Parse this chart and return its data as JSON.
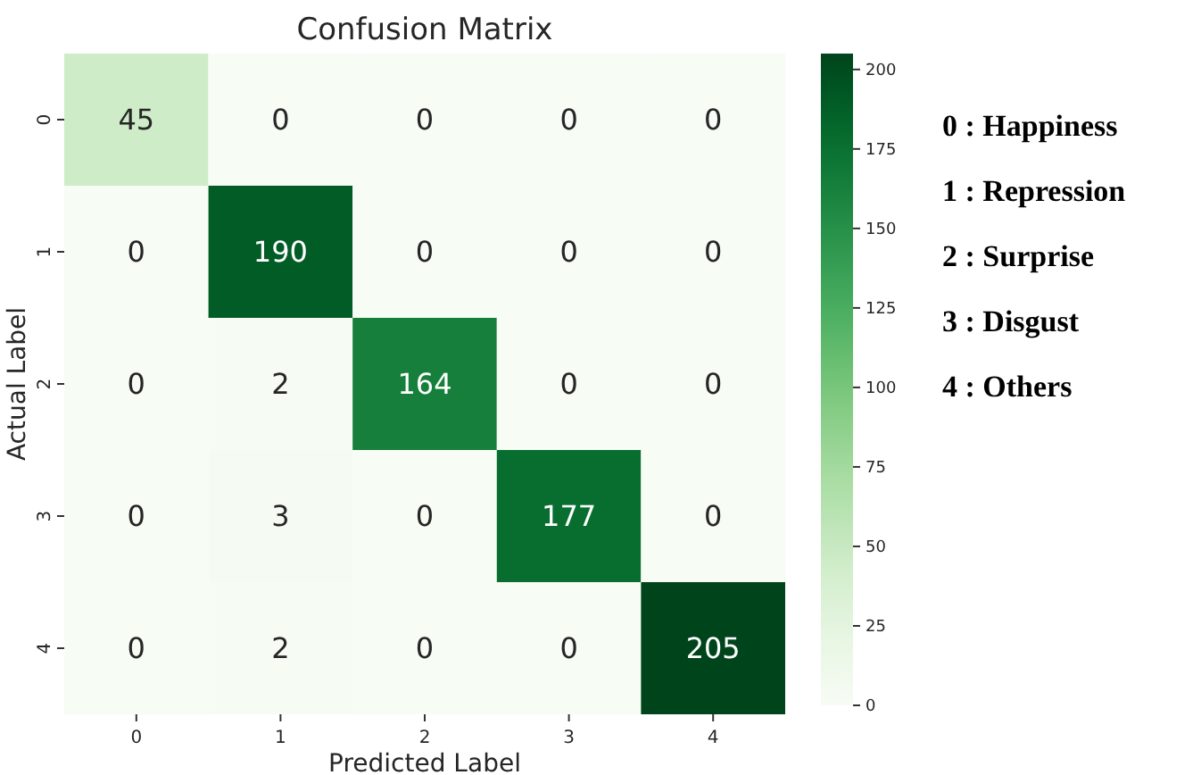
{
  "chart_data": {
    "type": "heatmap",
    "title": "Confusion Matrix",
    "xlabel": "Predicted Label",
    "ylabel": "Actual Label",
    "categories": [
      "0",
      "1",
      "2",
      "3",
      "4"
    ],
    "y_categories": [
      "0",
      "1",
      "2",
      "3",
      "4"
    ],
    "cells": [
      [
        45,
        0,
        0,
        0,
        0
      ],
      [
        0,
        190,
        0,
        0,
        0
      ],
      [
        0,
        2,
        164,
        0,
        0
      ],
      [
        0,
        3,
        0,
        177,
        0
      ],
      [
        0,
        2,
        0,
        0,
        205
      ]
    ],
    "clim": [
      0,
      205
    ],
    "cticks": [
      0,
      25,
      50,
      75,
      100,
      125,
      150,
      175,
      200
    ],
    "data_labels": true,
    "annotations": [
      "0 : Happiness",
      "1 : Repression",
      "2 : Surprise",
      "3 : Disgust",
      "4 : Others"
    ]
  }
}
